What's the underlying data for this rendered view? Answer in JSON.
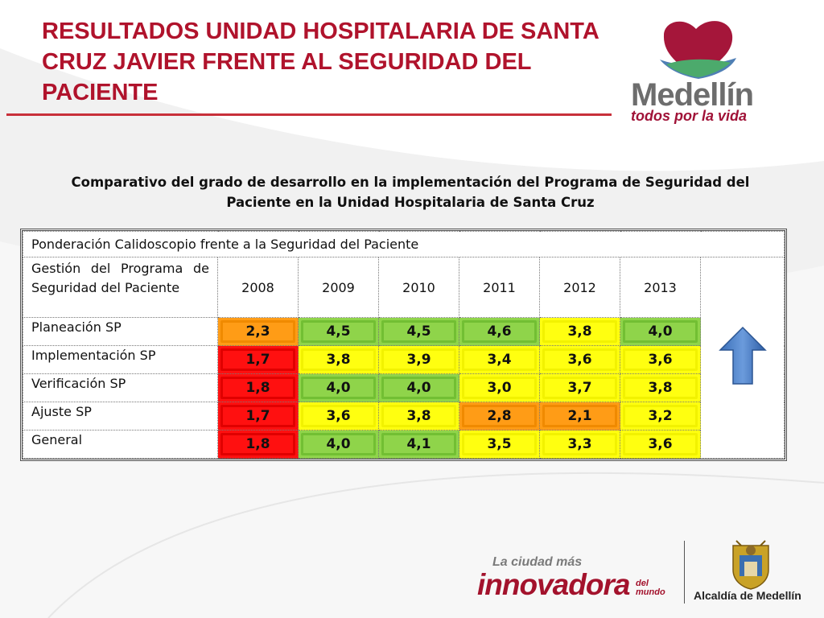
{
  "slide": {
    "title": "RESULTADOS UNIDAD HOSPITALARIA DE SANTA CRUZ JAVIER FRENTE AL SEGURIDAD DEL PACIENTE",
    "subtitle": "Comparativo del grado de desarrollo en la implementación del Programa de Seguridad del Paciente  en la Unidad Hospitalaria de Santa Cruz"
  },
  "logo": {
    "name": "Medellín",
    "slogan": "todos por la vida",
    "colors": {
      "heart": "#a5163a",
      "hills_green": "#4caa6c",
      "hills_blue": "#4f7fb5"
    }
  },
  "table": {
    "header": "Ponderación Calidoscopio frente a la Seguridad del Paciente",
    "row_header_label": "Gestión del Programa de Seguridad del Paciente",
    "years": [
      "2008",
      "2009",
      "2010",
      "2011",
      "2012",
      "2013"
    ],
    "rows": [
      {
        "label": "Planeación SP",
        "values": [
          "2,3",
          "4,5",
          "4,5",
          "4,6",
          "3,8",
          "4,0"
        ],
        "colors": [
          "orange",
          "green",
          "green",
          "green",
          "yellow",
          "green"
        ]
      },
      {
        "label": "Implementación  SP",
        "values": [
          "1,7",
          "3,8",
          "3,9",
          "3,4",
          "3,6",
          "3,6"
        ],
        "colors": [
          "red",
          "yellow",
          "yellow",
          "yellow",
          "yellow",
          "yellow"
        ]
      },
      {
        "label": "Verificación  SP",
        "values": [
          "1,8",
          "4,0",
          "4,0",
          "3,0",
          "3,7",
          "3,8"
        ],
        "colors": [
          "red",
          "green",
          "green",
          "yellow",
          "yellow",
          "yellow"
        ]
      },
      {
        "label": "Ajuste  SP",
        "values": [
          "1,7",
          "3,6",
          "3,8",
          "2,8",
          "2,1",
          "3,2"
        ],
        "colors": [
          "red",
          "yellow",
          "yellow",
          "orange",
          "orange",
          "yellow"
        ]
      },
      {
        "label": "General",
        "values": [
          "1,8",
          "4,0",
          "4,1",
          "3,5",
          "3,3",
          "3,6"
        ],
        "colors": [
          "red",
          "green",
          "green",
          "yellow",
          "yellow",
          "yellow"
        ]
      }
    ],
    "trend_icon": "up-arrow-icon"
  },
  "footer": {
    "tagline": "La ciudad más",
    "brand": "innovadora",
    "brand_suffix": "del mundo",
    "alcaldia": "Alcaldía de Medellín"
  }
}
